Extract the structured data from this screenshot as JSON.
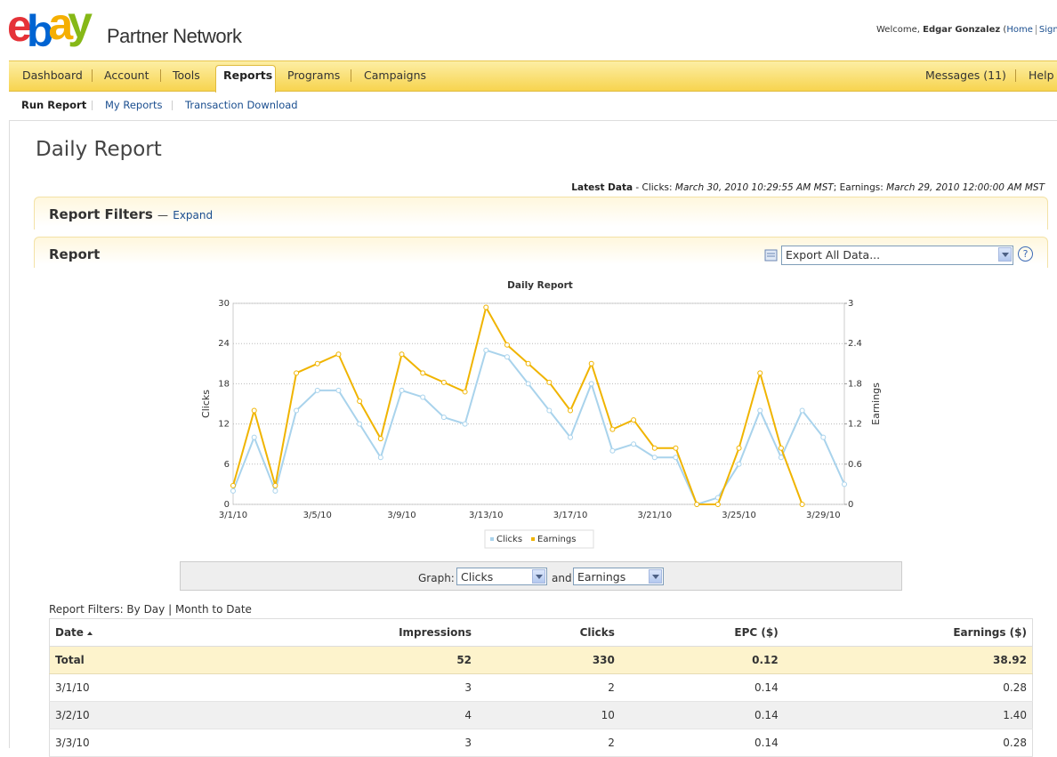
{
  "header": {
    "logo_letters": [
      "e",
      "b",
      "a",
      "y"
    ],
    "brand": "Partner Network",
    "welcome": "Welcome,",
    "user": "Edgar Gonzalez",
    "open": "(",
    "links": [
      "Home",
      "Sign out"
    ]
  },
  "nav": {
    "tabs": [
      "Dashboard",
      "Account",
      "Tools",
      "Reports",
      "Programs",
      "Campaigns"
    ],
    "active": 3,
    "right": [
      "Messages (11)",
      "Help"
    ]
  },
  "subnav": [
    "Run Report",
    "My Reports",
    "Transaction Download"
  ],
  "page_title": "Daily Report",
  "latest": {
    "label": "Latest Data",
    "clicks_label": "- Clicks:",
    "clicks_time": "March 30, 2010 10:29:55 AM MST",
    "earnings_label": "; Earnings:",
    "earnings_time": "March 29, 2010 12:00:00 AM MST"
  },
  "filters": {
    "title": "Report Filters",
    "dash": "—",
    "expand": "Expand"
  },
  "report": {
    "title": "Report",
    "export": "Export All Data...",
    "help": "?"
  },
  "chart_data": {
    "type": "line",
    "title": "Daily Report",
    "categories": [
      "3/1/10",
      null,
      null,
      null,
      "3/5/10",
      null,
      null,
      null,
      "3/9/10",
      null,
      null,
      null,
      "3/13/10",
      null,
      null,
      null,
      "3/17/10",
      null,
      null,
      null,
      "3/21/10",
      null,
      null,
      null,
      "3/25/10",
      null,
      null,
      null,
      "3/29/10",
      null
    ],
    "ylabel": "Clicks",
    "y2label": "Earnings",
    "ylim": [
      0,
      30
    ],
    "yticks": [
      0,
      6,
      12,
      18,
      24,
      30
    ],
    "y2lim": [
      0,
      3
    ],
    "y2ticks": [
      0,
      0.6,
      1.2,
      1.8,
      2.4,
      3
    ],
    "grid": true,
    "legend": "bottom",
    "series": [
      {
        "name": "Clicks",
        "color": "#a9d3ec",
        "values": [
          2,
          10,
          2,
          14,
          17,
          17,
          12,
          7,
          17,
          16,
          13,
          12,
          23,
          22,
          18,
          14,
          10,
          18,
          8,
          9,
          7,
          7,
          0,
          1,
          6,
          14,
          7,
          14,
          10,
          3
        ]
      },
      {
        "name": "Earnings",
        "color": "#f0b400",
        "axis": "y2",
        "values": [
          0.28,
          1.4,
          0.28,
          1.96,
          2.1,
          2.24,
          1.54,
          0.98,
          2.24,
          1.96,
          1.82,
          1.68,
          2.94,
          2.38,
          2.1,
          1.82,
          1.4,
          2.1,
          1.12,
          1.26,
          0.84,
          0.84,
          0,
          0,
          0.84,
          1.96,
          0.84,
          0,
          null,
          null
        ]
      }
    ]
  },
  "graph_select": {
    "label": "Graph:",
    "first": "Clicks",
    "and": "and",
    "second": "Earnings"
  },
  "table": {
    "caption": "Report Filters: By Day | Month to Date",
    "columns": [
      "Date",
      "Impressions",
      "Clicks",
      "EPC ($)",
      "Earnings ($)"
    ],
    "total": [
      "Total",
      "52",
      "330",
      "0.12",
      "38.92"
    ],
    "rows": [
      [
        "3/1/10",
        "3",
        "2",
        "0.14",
        "0.28"
      ],
      [
        "3/2/10",
        "4",
        "10",
        "0.14",
        "1.40"
      ],
      [
        "3/3/10",
        "3",
        "2",
        "0.14",
        "0.28"
      ]
    ]
  }
}
